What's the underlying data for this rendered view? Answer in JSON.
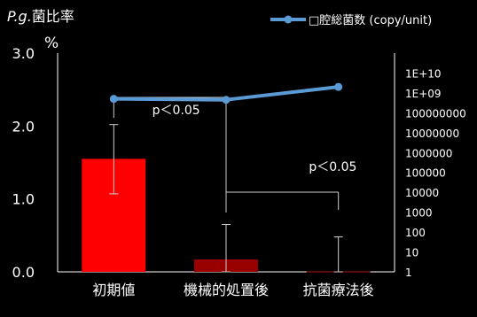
{
  "chart_data": {
    "type": "bar",
    "title": "P.g.菌比率",
    "title_italic_part": "P.g.",
    "title_rest": "菌比率",
    "ylabel_left": "%",
    "categories": [
      "初期値",
      "機械的処置後",
      "抗菌療法後"
    ],
    "series": [
      {
        "kind": "bar",
        "axis": "left",
        "values": [
          1.55,
          0.17,
          0.005
        ],
        "error_upper": [
          2.02,
          0.65,
          0.48
        ],
        "error_lower": [
          1.07,
          0.0,
          0.0
        ],
        "colors": [
          "#ff0000",
          "#990000",
          "#990000"
        ]
      },
      {
        "kind": "line",
        "axis": "right",
        "name": "□腔総菌数 (copy/unit)",
        "values": [
          500000000,
          450000000,
          2000000000
        ],
        "color": "#5b9bd5"
      }
    ],
    "left_axis": {
      "ylim": [
        0,
        3.0
      ],
      "ticks": [
        "0.0",
        "1.0",
        "2.0",
        "3.0"
      ]
    },
    "right_axis": {
      "scale": "log",
      "ylim": [
        1,
        100000000000
      ],
      "ticks": [
        "1",
        "10",
        "100",
        "1000",
        "10000",
        "100000",
        "1000000",
        "10000000",
        "100000000",
        "1E+09",
        "1E+10"
      ]
    },
    "annotations": [
      {
        "text": "p＜0.05",
        "from": 0,
        "to": 1
      },
      {
        "text": "p＜0.05",
        "from": 1,
        "to": 2
      }
    ],
    "legend": {
      "placement": "top-right"
    },
    "grid": false
  },
  "colors": {
    "background": "#000000",
    "text": "#ffffff",
    "axis": "#ffffff"
  }
}
